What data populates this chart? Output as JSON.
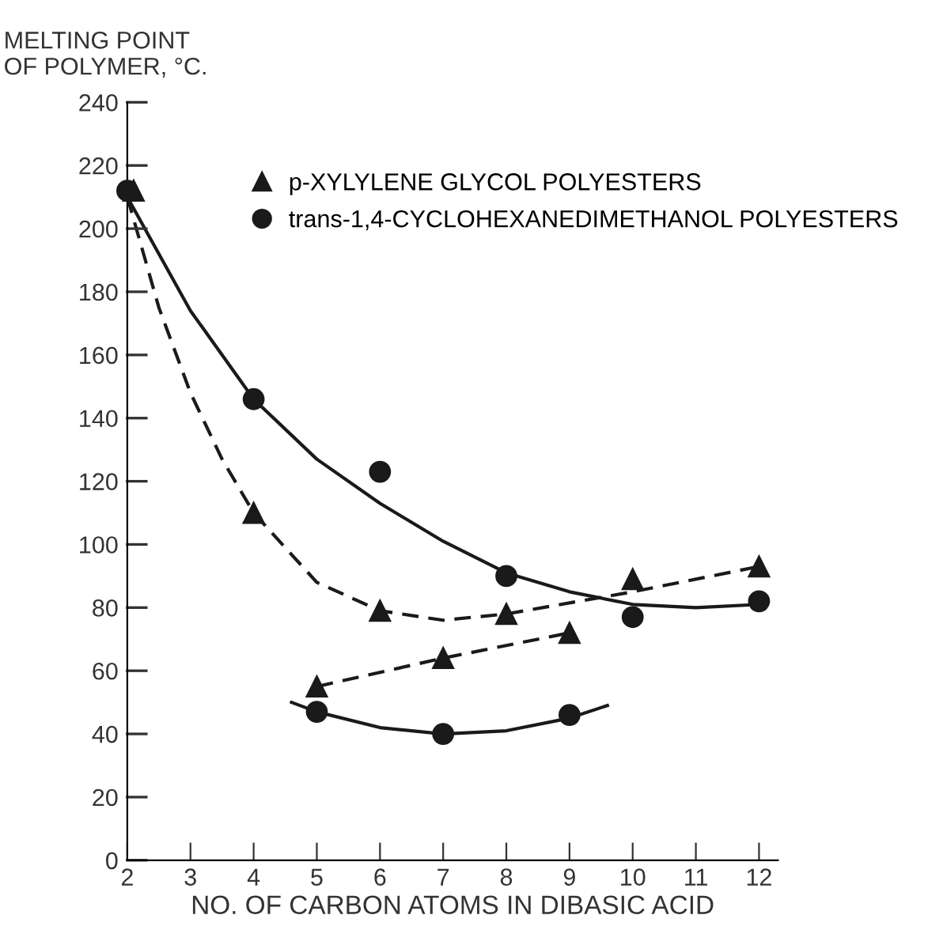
{
  "chart_data": {
    "type": "scatter",
    "xlabel": "NO. OF CARBON ATOMS IN DIBASIC ACID",
    "ylabel": "MELTING POINT\nOF POLYMER, °C.",
    "xlim": [
      2,
      12.3
    ],
    "xticks": [
      2,
      3,
      4,
      5,
      6,
      7,
      8,
      9,
      10,
      11,
      12
    ],
    "ylim": [
      0,
      240
    ],
    "yticks": [
      0,
      20,
      40,
      60,
      80,
      100,
      120,
      140,
      160,
      180,
      200,
      220,
      240
    ],
    "grid": false,
    "legend": "top right",
    "series": [
      {
        "name": "p-XYLYLENE GLYCOL POLYESTERS",
        "marker": "triangle",
        "color": "#1a1a1a",
        "x": [
          2.1,
          4,
          6,
          8,
          10,
          12,
          5,
          7,
          9
        ],
        "values": [
          212,
          110,
          79,
          78,
          89,
          93,
          55,
          64,
          72
        ]
      },
      {
        "name": "trans-1,4-CYCLOHEXANEDIMETHANOL POLYESTERS",
        "marker": "circle",
        "color": "#1a1a1a",
        "x": [
          2,
          4,
          6,
          8,
          10,
          12,
          5,
          7,
          9
        ],
        "values": [
          212,
          146,
          123,
          90,
          77,
          82,
          47,
          40,
          46
        ]
      },
      {
        "type": "line",
        "line_style": "dashed",
        "color": "#1a1a1a",
        "x": [
          2,
          2.5,
          3,
          3.5,
          4,
          5,
          6,
          7,
          8,
          10,
          12
        ],
        "values": [
          210,
          175,
          148,
          127,
          110,
          88,
          79,
          76,
          78,
          85,
          93
        ]
      },
      {
        "type": "line",
        "line_style": "dashed",
        "color": "#1a1a1a",
        "x": [
          5,
          7,
          9
        ],
        "values": [
          55,
          64,
          72
        ]
      },
      {
        "type": "line",
        "line_style": "solid",
        "color": "#1a1a1a",
        "x": [
          2,
          3,
          4,
          5,
          6,
          7,
          8,
          9,
          10,
          11,
          12
        ],
        "values": [
          210,
          174,
          146,
          127,
          113,
          101,
          91,
          85,
          81,
          80,
          81
        ]
      },
      {
        "type": "line",
        "line_style": "solid",
        "color": "#1a1a1a",
        "x": [
          4.6,
          5,
          6,
          7,
          8,
          9,
          9.6
        ],
        "values": [
          50,
          47,
          42,
          40,
          41,
          45,
          49
        ]
      }
    ]
  }
}
